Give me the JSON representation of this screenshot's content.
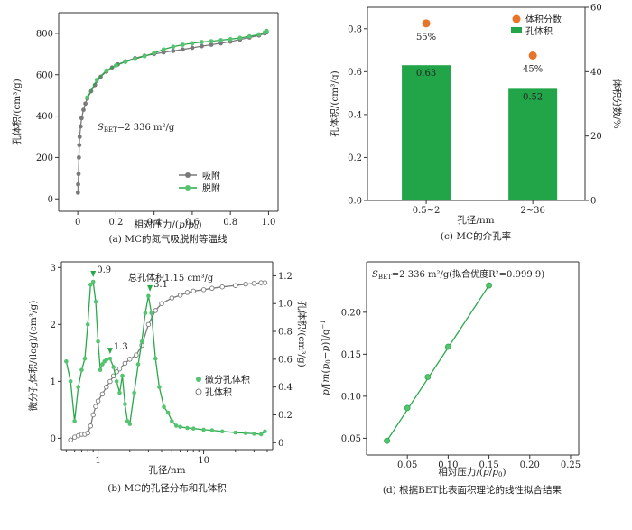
{
  "colors": {
    "green": "#2aa84a",
    "green_marker": "#55c470",
    "gray": "#7a7a7a",
    "orange": "#e8742a",
    "bar": "#21a548"
  },
  "chart_data": [
    {
      "id": "a",
      "type": "line",
      "caption": "(a) MC的氮气吸脱附等温线",
      "xlabel": "相对压力/(p/p₀)",
      "ylabel": "孔体积/(cm³/g)",
      "xlim": [
        -0.1,
        1.05
      ],
      "ylim": [
        -60,
        900
      ],
      "xticks": [
        "0",
        "0.2",
        "0.4",
        "0.6",
        "0.8",
        "1.0"
      ],
      "yticks": [
        "0",
        "200",
        "400",
        "600",
        "800"
      ],
      "annotation": "S_BET=2 336 m²/g",
      "ann_sub": "BET",
      "ann_prefix": "S",
      "ann_rest": "=2 336 m²/g",
      "legend": [
        "吸附",
        "脱附"
      ],
      "series": [
        {
          "name": "吸附",
          "color": "gray",
          "x": [
            0.001,
            0.002,
            0.004,
            0.006,
            0.008,
            0.01,
            0.015,
            0.02,
            0.03,
            0.04,
            0.05,
            0.07,
            0.09,
            0.12,
            0.15,
            0.18,
            0.21,
            0.25,
            0.3,
            0.35,
            0.4,
            0.45,
            0.5,
            0.55,
            0.6,
            0.65,
            0.7,
            0.75,
            0.8,
            0.85,
            0.9,
            0.95,
            0.98,
            0.99
          ],
          "y": [
            30,
            70,
            120,
            200,
            260,
            300,
            350,
            390,
            430,
            460,
            485,
            520,
            550,
            590,
            615,
            635,
            650,
            665,
            680,
            692,
            700,
            708,
            715,
            722,
            730,
            738,
            745,
            752,
            760,
            770,
            780,
            790,
            800,
            805
          ]
        },
        {
          "name": "脱附",
          "color": "green",
          "x": [
            0.99,
            0.98,
            0.95,
            0.9,
            0.85,
            0.8,
            0.75,
            0.7,
            0.65,
            0.6,
            0.55,
            0.5,
            0.45,
            0.4,
            0.35,
            0.3,
            0.25,
            0.2,
            0.15,
            0.1,
            0.05
          ],
          "y": [
            812,
            805,
            795,
            786,
            778,
            772,
            767,
            762,
            758,
            752,
            745,
            735,
            722,
            705,
            690,
            676,
            662,
            645,
            620,
            575,
            490
          ]
        }
      ]
    },
    {
      "id": "b",
      "type": "line",
      "caption": "(b) MC的孔径分布和孔体积",
      "xlabel": "孔径/nm",
      "ylabel": "微分孔体积/(log)/(cm³/g)",
      "ylabel_right": "孔体积/(cm³/g)",
      "xscale": "log",
      "xlim": [
        0.45,
        45
      ],
      "ylim": [
        -0.2,
        3.1
      ],
      "ylim_right": [
        -0.05,
        1.3
      ],
      "xticks": [
        "1",
        "10"
      ],
      "yticks": [
        "0",
        "1",
        "2",
        "3"
      ],
      "yticks_right": [
        "0",
        "0.2",
        "0.4",
        "0.6",
        "0.8",
        "1.0",
        "1.2"
      ],
      "title": "总孔体积1.15 cm³/g",
      "peak_labels": [
        "0.9",
        "1.3",
        "3.1"
      ],
      "legend": [
        "微分孔体积",
        "孔体积"
      ],
      "series": [
        {
          "name": "微分孔体积",
          "color": "green",
          "x": [
            0.5,
            0.55,
            0.6,
            0.65,
            0.7,
            0.75,
            0.8,
            0.85,
            0.9,
            0.95,
            1.0,
            1.05,
            1.1,
            1.15,
            1.2,
            1.3,
            1.4,
            1.5,
            1.6,
            1.7,
            1.8,
            1.9,
            2.0,
            2.2,
            2.4,
            2.6,
            2.8,
            3.0,
            3.2,
            3.5,
            3.8,
            4.2,
            4.6,
            5.0,
            5.5,
            6,
            7,
            8,
            10,
            12,
            15,
            20,
            25,
            30,
            35,
            38
          ],
          "y": [
            1.35,
            1.0,
            0.3,
            0.9,
            1.2,
            1.4,
            2.0,
            2.7,
            2.75,
            2.4,
            1.7,
            1.2,
            1.3,
            1.35,
            1.38,
            1.4,
            1.25,
            1.0,
            0.8,
            1.1,
            0.6,
            0.3,
            0.25,
            0.8,
            1.3,
            1.7,
            2.2,
            2.5,
            2.2,
            1.4,
            0.9,
            0.55,
            0.45,
            0.3,
            0.22,
            0.2,
            0.18,
            0.17,
            0.15,
            0.14,
            0.12,
            0.1,
            0.09,
            0.08,
            0.07,
            0.12
          ]
        },
        {
          "name": "孔体积",
          "color": "gray",
          "x": [
            0.55,
            0.6,
            0.65,
            0.7,
            0.75,
            0.8,
            0.85,
            0.9,
            0.95,
            1.0,
            1.1,
            1.2,
            1.3,
            1.4,
            1.5,
            1.6,
            1.8,
            2.0,
            2.3,
            2.6,
            3.0,
            3.5,
            4,
            5,
            6,
            7,
            8,
            10,
            12,
            15,
            20,
            25,
            30,
            35,
            38
          ],
          "y": [
            0.02,
            0.04,
            0.05,
            0.06,
            0.06,
            0.07,
            0.12,
            0.2,
            0.26,
            0.3,
            0.35,
            0.4,
            0.44,
            0.48,
            0.51,
            0.53,
            0.57,
            0.6,
            0.63,
            0.7,
            0.85,
            0.95,
            1.0,
            1.04,
            1.06,
            1.08,
            1.09,
            1.1,
            1.11,
            1.12,
            1.13,
            1.14,
            1.145,
            1.15,
            1.15
          ]
        }
      ]
    },
    {
      "id": "c",
      "type": "bar",
      "caption": "(c) MC的介孔率",
      "xlabel": "孔径/nm",
      "ylabel": "孔体积/(cm³/g)",
      "ylabel_right": "体积分数/%",
      "categories": [
        "0.5~2",
        "2~36"
      ],
      "values": [
        0.63,
        0.52
      ],
      "bar_labels": [
        "0.63",
        "0.52"
      ],
      "ylim": [
        0,
        0.9
      ],
      "ylim_right": [
        0,
        60
      ],
      "yticks": [
        "0.0",
        "0.2",
        "0.4",
        "0.6",
        "0.8"
      ],
      "yticks_right": [
        "0",
        "20",
        "40",
        "60"
      ],
      "fraction_values": [
        55,
        45
      ],
      "fraction_labels": [
        "55%",
        "45%"
      ],
      "legend": [
        "体积分数",
        "孔体积"
      ]
    },
    {
      "id": "d",
      "type": "scatter",
      "caption": "(d) 根据BET比表面积理论的线性拟合结果",
      "xlabel": "相对压力/(p/p₀)",
      "ylabel": "p/[m(p₀-p)]/g⁻¹",
      "xlim": [
        0,
        0.26
      ],
      "ylim": [
        0.03,
        0.26
      ],
      "xticks": [
        "0.05",
        "0.10",
        "0.15",
        "0.20",
        "0.25"
      ],
      "yticks": [
        "0.05",
        "0.10",
        "0.15",
        "0.20"
      ],
      "annotation": "S_BET=2 336 m²/g(拟合优度R²=0.999 9)",
      "ann_prefix": "S",
      "ann_sub": "BET",
      "ann_rest": "=2 336 m²/g(拟合优度R²=0.999 9)",
      "x": [
        0.025,
        0.05,
        0.075,
        0.1,
        0.15
      ],
      "y": [
        0.047,
        0.086,
        0.123,
        0.159,
        0.232
      ]
    }
  ]
}
